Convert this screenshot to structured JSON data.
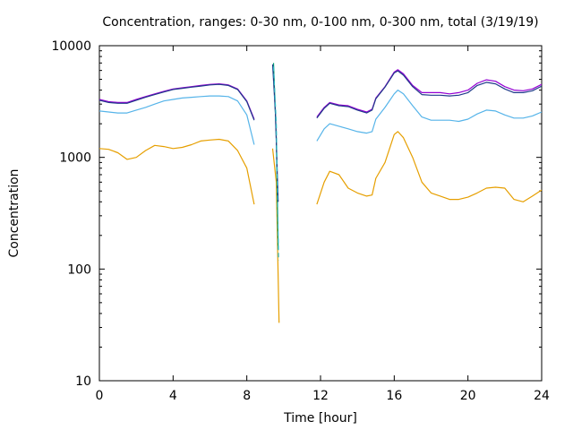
{
  "chart_data": {
    "type": "line",
    "title": "Concentration, ranges: 0-30 nm, 0-100 nm, 0-300 nm, total (3/19/19)",
    "xlabel": "Time [hour]",
    "ylabel": "Concentration",
    "xlim": [
      0,
      24
    ],
    "ylim": [
      10,
      10000
    ],
    "yscale": "log",
    "grid": false,
    "legend": "none",
    "x_ticks": [
      "0",
      "4",
      "8",
      "12",
      "16",
      "20",
      "24"
    ],
    "y_ticks": [
      "10",
      "100",
      "1000",
      "10000"
    ],
    "x_tick_values": [
      0,
      4,
      8,
      12,
      16,
      20,
      24
    ],
    "y_tick_values": [
      10,
      100,
      1000,
      10000
    ],
    "series": [
      {
        "color": "#e69f00",
        "segments": [
          [
            [
              0,
              1200
            ],
            [
              0.5,
              1180
            ],
            [
              1,
              1100
            ],
            [
              1.5,
              960
            ],
            [
              2,
              1000
            ],
            [
              2.5,
              1150
            ],
            [
              3,
              1280
            ],
            [
              3.5,
              1250
            ],
            [
              4,
              1200
            ],
            [
              4.5,
              1230
            ],
            [
              5,
              1300
            ],
            [
              5.5,
              1400
            ],
            [
              6,
              1430
            ],
            [
              6.5,
              1450
            ],
            [
              7,
              1400
            ],
            [
              7.5,
              1150
            ],
            [
              8,
              800
            ],
            [
              8.4,
              380
            ]
          ],
          [
            [
              9.4,
              1200
            ],
            [
              9.6,
              600
            ],
            [
              9.75,
              33
            ]
          ],
          [
            [
              11.8,
              380
            ],
            [
              12.2,
              600
            ],
            [
              12.5,
              750
            ],
            [
              13,
              700
            ],
            [
              13.5,
              530
            ],
            [
              14,
              480
            ],
            [
              14.5,
              450
            ],
            [
              14.8,
              460
            ],
            [
              15,
              650
            ],
            [
              15.5,
              900
            ],
            [
              16,
              1600
            ],
            [
              16.2,
              1700
            ],
            [
              16.5,
              1500
            ],
            [
              17,
              1000
            ],
            [
              17.5,
              600
            ],
            [
              18,
              480
            ],
            [
              18.5,
              450
            ],
            [
              19,
              420
            ],
            [
              19.5,
              420
            ],
            [
              20,
              440
            ],
            [
              20.5,
              480
            ],
            [
              21,
              530
            ],
            [
              21.5,
              540
            ],
            [
              22,
              530
            ],
            [
              22.5,
              420
            ],
            [
              23,
              400
            ],
            [
              23.5,
              450
            ],
            [
              24,
              510
            ]
          ]
        ]
      },
      {
        "color": "#56b4e9",
        "segments": [
          [
            [
              0,
              2600
            ],
            [
              0.5,
              2550
            ],
            [
              1,
              2500
            ],
            [
              1.5,
              2500
            ],
            [
              2,
              2650
            ],
            [
              2.5,
              2800
            ],
            [
              3,
              3000
            ],
            [
              3.5,
              3200
            ],
            [
              4,
              3300
            ],
            [
              4.5,
              3400
            ],
            [
              5,
              3450
            ],
            [
              5.5,
              3500
            ],
            [
              6,
              3550
            ],
            [
              6.5,
              3550
            ],
            [
              7,
              3500
            ],
            [
              7.5,
              3200
            ],
            [
              8,
              2400
            ],
            [
              8.4,
              1300
            ]
          ],
          [
            [
              11.8,
              1400
            ],
            [
              12.2,
              1800
            ],
            [
              12.5,
              2000
            ],
            [
              13,
              1900
            ],
            [
              13.5,
              1800
            ],
            [
              14,
              1700
            ],
            [
              14.5,
              1650
            ],
            [
              14.8,
              1700
            ],
            [
              15,
              2200
            ],
            [
              15.5,
              2800
            ],
            [
              16,
              3700
            ],
            [
              16.2,
              4000
            ],
            [
              16.5,
              3700
            ],
            [
              17,
              2900
            ],
            [
              17.5,
              2300
            ],
            [
              18,
              2150
            ],
            [
              18.5,
              2150
            ],
            [
              19,
              2150
            ],
            [
              19.5,
              2100
            ],
            [
              20,
              2200
            ],
            [
              20.5,
              2450
            ],
            [
              21,
              2650
            ],
            [
              21.5,
              2600
            ],
            [
              22,
              2400
            ],
            [
              22.5,
              2250
            ],
            [
              23,
              2250
            ],
            [
              23.5,
              2350
            ],
            [
              24,
              2550
            ]
          ]
        ]
      },
      {
        "color": "#009e73",
        "segments": [
          [
            [
              9.45,
              7000
            ],
            [
              9.6,
              1500
            ],
            [
              9.7,
              150
            ]
          ]
        ]
      },
      {
        "color": "#9400d3",
        "segments": [
          [
            [
              0,
              3300
            ],
            [
              0.5,
              3150
            ],
            [
              1,
              3100
            ],
            [
              1.5,
              3100
            ],
            [
              2,
              3300
            ],
            [
              2.5,
              3500
            ],
            [
              3,
              3700
            ],
            [
              3.5,
              3900
            ],
            [
              4,
              4100
            ],
            [
              4.5,
              4200
            ],
            [
              5,
              4300
            ],
            [
              5.5,
              4400
            ],
            [
              6,
              4500
            ],
            [
              6.5,
              4550
            ],
            [
              7,
              4450
            ],
            [
              7.5,
              4100
            ],
            [
              8,
              3200
            ],
            [
              8.4,
              2200
            ]
          ],
          [
            [
              11.8,
              2300
            ],
            [
              12.2,
              2800
            ],
            [
              12.5,
              3100
            ],
            [
              13,
              2950
            ],
            [
              13.5,
              2900
            ],
            [
              14,
              2700
            ],
            [
              14.5,
              2550
            ],
            [
              14.8,
              2700
            ],
            [
              15,
              3400
            ],
            [
              15.5,
              4300
            ],
            [
              16,
              5800
            ],
            [
              16.2,
              6100
            ],
            [
              16.5,
              5600
            ],
            [
              17,
              4400
            ],
            [
              17.5,
              3800
            ],
            [
              18,
              3800
            ],
            [
              18.5,
              3800
            ],
            [
              19,
              3700
            ],
            [
              19.5,
              3800
            ],
            [
              20,
              4000
            ],
            [
              20.5,
              4600
            ],
            [
              21,
              4950
            ],
            [
              21.5,
              4800
            ],
            [
              22,
              4300
            ],
            [
              22.5,
              4000
            ],
            [
              23,
              3950
            ],
            [
              23.5,
              4100
            ],
            [
              24,
              4500
            ]
          ]
        ]
      },
      {
        "color": "#1f3a8a",
        "segments": [
          [
            [
              0,
              3250
            ],
            [
              0.5,
              3100
            ],
            [
              1,
              3050
            ],
            [
              1.5,
              3050
            ],
            [
              2,
              3250
            ],
            [
              2.5,
              3450
            ],
            [
              3,
              3650
            ],
            [
              3.5,
              3850
            ],
            [
              4,
              4050
            ],
            [
              4.5,
              4150
            ],
            [
              5,
              4250
            ],
            [
              5.5,
              4350
            ],
            [
              6,
              4450
            ],
            [
              6.5,
              4500
            ],
            [
              7,
              4400
            ],
            [
              7.5,
              4050
            ],
            [
              8,
              3150
            ],
            [
              8.4,
              2150
            ]
          ],
          [
            [
              9.4,
              6800
            ],
            [
              9.55,
              2500
            ],
            [
              9.7,
              400
            ]
          ],
          [
            [
              11.8,
              2250
            ],
            [
              12.2,
              2750
            ],
            [
              12.5,
              3050
            ],
            [
              13,
              2900
            ],
            [
              13.5,
              2850
            ],
            [
              14,
              2650
            ],
            [
              14.5,
              2500
            ],
            [
              14.8,
              2650
            ],
            [
              15,
              3350
            ],
            [
              15.5,
              4250
            ],
            [
              16,
              5700
            ],
            [
              16.2,
              5950
            ],
            [
              16.5,
              5450
            ],
            [
              17,
              4300
            ],
            [
              17.5,
              3650
            ],
            [
              18,
              3600
            ],
            [
              18.5,
              3600
            ],
            [
              19,
              3550
            ],
            [
              19.5,
              3600
            ],
            [
              20,
              3800
            ],
            [
              20.5,
              4400
            ],
            [
              21,
              4700
            ],
            [
              21.5,
              4550
            ],
            [
              22,
              4100
            ],
            [
              22.5,
              3800
            ],
            [
              23,
              3800
            ],
            [
              23.5,
              3950
            ],
            [
              24,
              4350
            ]
          ]
        ]
      },
      {
        "color": "#2ab7c0",
        "dashed": true,
        "segments": [
          [
            [
              9.45,
              6500
            ],
            [
              9.6,
              2000
            ],
            [
              9.72,
              120
            ]
          ]
        ]
      }
    ]
  }
}
